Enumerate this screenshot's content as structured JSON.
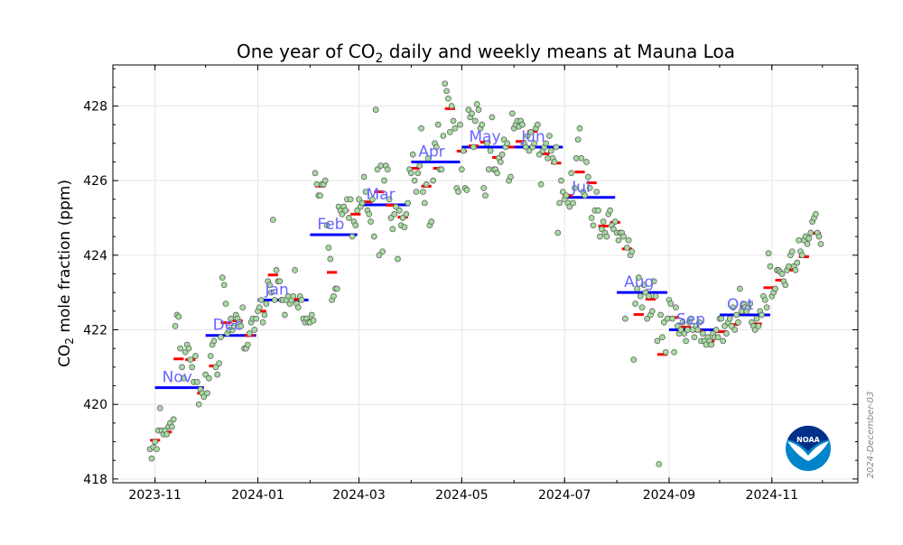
{
  "chart_data": {
    "type": "scatter",
    "title_main": "One year of CO",
    "title_sub": "2",
    "title_rest": " daily and weekly means at Mauna Loa",
    "ylabel_main": "CO",
    "ylabel_sub": "2",
    "ylabel_rest": " mole fraction (ppm)",
    "xlabel": "",
    "xlim": [
      "2023-10-07",
      "2024-12-22"
    ],
    "ylim": [
      417.9,
      429.1
    ],
    "grid": true,
    "x_ticks": [
      "2023-11",
      "2024-01",
      "2024-03",
      "2024-05",
      "2024-07",
      "2024-09",
      "2024-11"
    ],
    "y_ticks": [
      418,
      420,
      422,
      424,
      426,
      428
    ],
    "colors": {
      "daily_fill": "#a6dba0",
      "daily_edge": "#555555",
      "weekly": "#ff0000",
      "monthly": "#0000ff",
      "month_label": "#6666ff"
    },
    "monthly": [
      {
        "label": "Nov",
        "month": "2023-11",
        "value": 420.45
      },
      {
        "label": "Dec",
        "month": "2023-12",
        "value": 421.85
      },
      {
        "label": "Jan",
        "month": "2024-01",
        "value": 422.8
      },
      {
        "label": "Feb",
        "month": "2024-02",
        "value": 424.55
      },
      {
        "label": "Mar",
        "month": "2024-03",
        "value": 425.35
      },
      {
        "label": "Apr",
        "month": "2024-04",
        "value": 426.5
      },
      {
        "label": "May",
        "month": "2024-05",
        "value": 426.9
      },
      {
        "label": "Jun",
        "month": "2024-06",
        "value": 426.9
      },
      {
        "label": "Jul",
        "month": "2024-07",
        "value": 425.55
      },
      {
        "label": "Aug",
        "month": "2024-08",
        "value": 423.0
      },
      {
        "label": "Sep",
        "month": "2024-09",
        "value": 422.0
      },
      {
        "label": "Oct",
        "month": "2024-10",
        "value": 422.4
      }
    ],
    "weekly_first_center": "2023-11-01",
    "weekly_values": [
      419.04,
      419.26,
      421.22,
      421.2,
      420.3,
      421.03,
      422.19,
      422.24,
      421.85,
      422.5,
      423.47,
      422.8,
      422.82,
      422.26,
      425.85,
      423.54,
      425.2,
      425.1,
      425.43,
      425.7,
      425.34,
      425.02,
      426.33,
      425.85,
      426.33,
      427.93,
      426.79,
      426.93,
      427.03,
      426.62,
      426.9,
      427.05,
      427.32,
      426.72,
      426.47,
      425.6,
      426.23,
      425.94,
      424.78,
      424.88,
      424.17,
      422.41,
      422.82,
      421.34,
      422.33,
      422.07,
      421.97,
      421.7,
      421.95,
      422.14,
      422.62,
      422.16,
      423.13,
      423.33,
      423.6,
      423.96,
      424.59
    ],
    "daily_first_date": "2023-10-29",
    "daily_values": [
      418.8,
      418.55,
      418.85,
      419.0,
      418.8,
      419.3,
      419.9,
      419.3,
      419.2,
      419.3,
      419.2,
      419.4,
      419.5,
      419.4,
      419.6,
      422.1,
      422.4,
      422.35,
      421.5,
      421.0,
      420.7,
      421.4,
      421.6,
      421.5,
      421.2,
      421.0,
      420.6,
      421.3,
      420.6,
      420.0,
      420.4,
      420.3,
      420.2,
      420.8,
      420.3,
      420.7,
      421.3,
      421.6,
      421.7,
      421.0,
      420.8,
      421.1,
      421.8,
      423.4,
      423.2,
      422.7,
      421.9,
      422.0,
      422.3,
      422.0,
      422.1,
      422.4,
      422.3,
      422.2,
      422.1,
      422.6,
      421.5,
      421.5,
      421.6,
      421.9,
      422.2,
      422.3,
      422.0,
      422.3,
      422.5,
      422.6,
      422.8,
      422.2,
      422.4,
      422.7,
      423.3,
      423.2,
      423.0,
      424.95,
      422.8,
      423.6,
      423.3,
      423.3,
      422.8,
      422.8,
      422.4,
      422.8,
      422.9,
      422.7,
      422.8,
      422.9,
      423.6,
      422.7,
      422.6,
      422.9,
      422.8,
      422.3,
      422.2,
      422.3,
      422.2,
      422.2,
      422.4,
      422.25,
      426.2,
      425.9,
      425.6,
      425.6,
      425.9,
      425.9,
      426.0,
      424.8,
      424.2,
      423.9,
      422.8,
      422.9,
      423.1,
      423.1,
      425.3,
      425.2,
      425.1,
      425.3,
      425.2,
      425.5,
      425.0,
      425.5,
      424.5,
      424.9,
      424.8,
      425.2,
      425.5,
      425.3,
      425.4,
      426.1,
      425.7,
      425.2,
      425.1,
      424.9,
      425.5,
      424.5,
      427.9,
      426.3,
      424.0,
      426.4,
      424.1,
      426.0,
      426.4,
      426.3,
      425.5,
      425.0,
      424.7,
      425.1,
      425.3,
      423.9,
      425.2,
      424.8,
      425.0,
      424.75,
      425.1,
      425.4,
      426.3,
      426.2,
      426.7,
      426.0,
      425.7,
      426.2,
      426.4,
      427.4,
      425.7,
      425.4,
      425.9,
      426.6,
      424.8,
      424.9,
      426.0,
      427.0,
      426.9,
      427.5,
      426.3,
      426.3,
      427.2,
      428.6,
      428.4,
      428.2,
      427.3,
      428.0,
      427.6,
      427.4,
      425.8,
      425.7,
      427.5,
      426.3,
      426.8,
      425.8,
      425.75,
      427.9,
      427.7,
      427.8,
      426.9,
      427.6,
      428.05,
      427.9,
      427.4,
      427.5,
      425.8,
      425.6,
      427.0,
      426.3,
      426.8,
      427.7,
      426.3,
      426.3,
      426.2,
      426.6,
      426.5,
      426.7,
      427.1,
      426.9,
      427.0,
      426.0,
      426.1,
      427.8,
      427.4,
      427.5,
      427.6,
      427.45,
      427.6,
      427.5,
      427.0,
      426.9,
      427.2,
      426.8,
      427.3,
      426.9,
      427.0,
      427.4,
      427.5,
      426.7,
      425.9,
      426.8,
      426.9,
      427.0,
      426.6,
      427.2,
      426.8,
      426.6,
      426.5,
      426.9,
      424.6,
      425.4,
      426.0,
      425.7,
      425.5,
      425.6,
      425.4,
      425.3,
      426.2,
      425.4,
      425.8,
      426.6,
      427.1,
      427.4,
      426.6,
      425.7,
      425.6,
      426.5,
      426.1,
      425.8,
      425.0,
      424.8,
      425.2,
      425.7,
      425.2,
      424.5,
      424.7,
      424.9,
      424.6,
      424.5,
      425.1,
      425.2,
      424.8,
      424.7,
      424.9,
      424.6,
      424.4,
      424.6,
      424.6,
      424.5,
      422.3,
      424.2,
      424.4,
      424.0,
      424.1,
      421.2,
      422.7,
      423.1,
      423.4,
      422.9,
      422.6,
      423.2,
      423.0,
      422.3,
      422.9,
      422.4,
      422.5,
      423.3,
      422.9,
      421.7,
      418.4,
      422.4,
      421.8,
      422.2,
      421.4,
      422.3,
      422.8,
      422.7,
      422.3,
      421.4,
      422.6,
      422.1,
      421.9,
      422.0,
      422.2,
      421.9,
      421.7,
      422.0,
      422.2,
      422.3,
      422.0,
      421.8,
      422.1,
      422.0,
      422.2,
      421.7,
      421.9,
      421.7,
      421.6,
      421.8,
      421.7,
      421.6,
      421.9,
      421.8,
      422.0,
      421.8,
      422.3,
      422.3,
      421.7,
      422.1,
      421.9,
      422.2,
      422.3,
      422.1,
      422.6,
      422.0,
      422.4,
      422.2,
      423.1,
      422.5,
      422.7,
      422.6,
      422.5,
      422.6,
      422.7,
      422.2,
      422.1,
      422.0,
      422.3,
      422.1,
      422.5,
      422.4,
      422.9,
      422.8,
      422.6,
      424.05,
      423.7,
      422.9,
      423.0,
      423.1,
      423.6,
      423.6,
      423.55,
      423.5,
      423.3,
      423.2,
      423.6,
      423.7,
      424.0,
      424.1,
      423.7,
      423.6,
      423.8,
      424.4,
      424.1,
      424.0,
      424.4,
      424.5,
      424.3,
      424.45,
      424.6,
      424.9,
      425.0,
      425.1,
      424.6,
      424.5,
      424.3
    ]
  },
  "side_date": "2024-December-03",
  "logo": {
    "text": "NOAA",
    "icon": "noaa-logo"
  }
}
